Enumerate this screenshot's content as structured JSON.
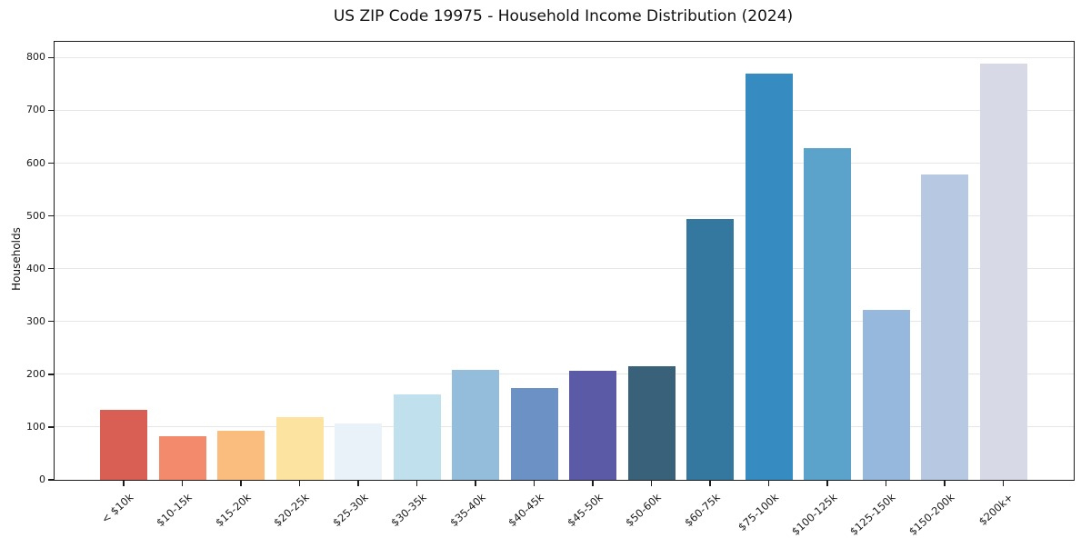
{
  "chart_data": {
    "type": "bar",
    "title": "US ZIP Code 19975 - Household Income Distribution (2024)",
    "xlabel": "",
    "ylabel": "Households",
    "categories": [
      "< $10k",
      "$10-15k",
      "$15-20k",
      "$20-25k",
      "$25-30k",
      "$30-35k",
      "$35-40k",
      "$40-45k",
      "$45-50k",
      "$50-60k",
      "$60-75k",
      "$75-100k",
      "$100-125k",
      "$125-150k",
      "$150-200k",
      "$200k+"
    ],
    "values": [
      133,
      82,
      93,
      118,
      106,
      162,
      208,
      174,
      206,
      215,
      495,
      770,
      628,
      322,
      578,
      788
    ],
    "bar_colors": [
      "#d95f55",
      "#f28a6b",
      "#fbbd7d",
      "#fde3a0",
      "#e8f2f8",
      "#c0e0ee",
      "#93bddb",
      "#6c92c5",
      "#5a5aa6",
      "#39617a",
      "#35789f",
      "#368cc1",
      "#5ba3cb",
      "#95b8dc",
      "#b7c9e2",
      "#d7dae6"
    ],
    "yticks": [
      0,
      100,
      200,
      300,
      400,
      500,
      600,
      700,
      800
    ],
    "ylim": [
      0,
      830
    ],
    "grid": "horizontal",
    "legend_position": "none",
    "plot_background": "#ffffff",
    "gridline_color": "#e6e6e6",
    "frame_color": "#1c1c1c"
  }
}
